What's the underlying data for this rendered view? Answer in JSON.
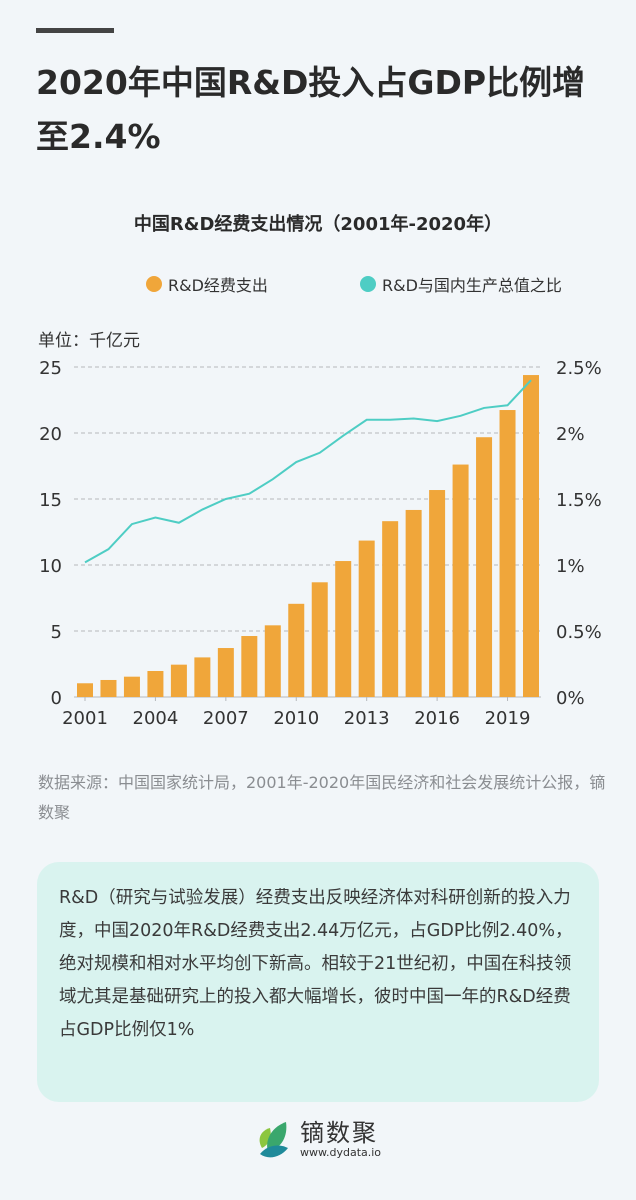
{
  "header": {
    "title": "2020年中国R&D投入占GDP比例增至2.4%"
  },
  "chart_data": {
    "type": "bar+line",
    "title": "中国R&D经费支出情况（2001年-2020年）",
    "unit_label": "单位：千亿元",
    "categories": [
      "2001",
      "2002",
      "2003",
      "2004",
      "2005",
      "2006",
      "2007",
      "2008",
      "2009",
      "2010",
      "2011",
      "2012",
      "2013",
      "2014",
      "2015",
      "2016",
      "2017",
      "2018",
      "2019",
      "2020"
    ],
    "x_tick_labels": [
      "2001",
      "2004",
      "2007",
      "2010",
      "2013",
      "2016",
      "2019"
    ],
    "series": [
      {
        "name": "R&D经费支出",
        "type": "bar",
        "axis": "left",
        "color": "#f0a63a",
        "values": [
          1.04,
          1.29,
          1.54,
          1.97,
          2.45,
          3.0,
          3.71,
          4.62,
          5.43,
          7.06,
          8.69,
          10.3,
          11.85,
          13.32,
          14.17,
          15.68,
          17.61,
          19.68,
          21.74,
          24.39
        ]
      },
      {
        "name": "R&D与国内生产总值之比",
        "type": "line",
        "axis": "right",
        "color": "#4ecdc4",
        "values": [
          1.02,
          1.12,
          1.31,
          1.36,
          1.32,
          1.42,
          1.5,
          1.54,
          1.65,
          1.78,
          1.85,
          1.98,
          2.1,
          2.1,
          2.11,
          2.09,
          2.13,
          2.19,
          2.21,
          2.4
        ]
      }
    ],
    "ylim_left": [
      0,
      25
    ],
    "yticks_left": [
      "0",
      "5",
      "10",
      "15",
      "20",
      "25"
    ],
    "ylim_right": [
      0,
      2.5
    ],
    "yticks_right": [
      "0%",
      "0.5%",
      "1%",
      "1.5%",
      "2%",
      "2.5%"
    ],
    "grid": true,
    "legend": "top"
  },
  "source": "数据来源：中国国家统计局，2001年-2020年国民经济和社会发展统计公报，镝数聚",
  "summary": "R&D（研究与试验发展）经费支出反映经济体对科研创新的投入力度，中国2020年R&D经费支出2.44万亿元，占GDP比例2.40%，绝对规模和相对水平均创下新高。相较于21世纪初，中国在科技领域尤其是基础研究上的投入都大幅增长，彼时中国一年的R&D经费占GDP比例仅1%",
  "logo": {
    "name": "镝数聚",
    "url": "www.dydata.io"
  }
}
